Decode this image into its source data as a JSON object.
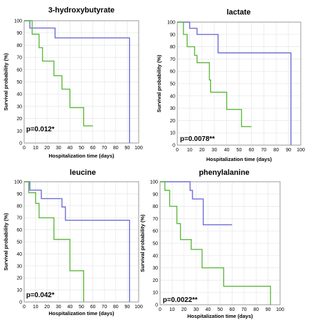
{
  "colors": {
    "blue_series": "#6b6bd6",
    "green_series": "#5cb83c",
    "frame": "#9a9a9a",
    "grid": "#e6e6e6"
  },
  "chart_data": [
    {
      "type": "line",
      "step": true,
      "title": "3-hydroxybutyrate",
      "xlabel": "Hospitalization time  (days)",
      "ylabel": "Survival probability  (%)",
      "xlim": [
        0,
        100
      ],
      "ylim": [
        0,
        100
      ],
      "xticks": [
        0,
        10,
        20,
        30,
        40,
        50,
        60,
        70,
        80,
        90,
        100
      ],
      "yticks": [
        0,
        10,
        20,
        30,
        40,
        50,
        60,
        70,
        80,
        90,
        100
      ],
      "grid": true,
      "annotation": "p=0.012*",
      "series": [
        {
          "color": "blue",
          "points": [
            [
              0,
              100
            ],
            [
              5,
              100
            ],
            [
              5,
              94
            ],
            [
              27,
              94
            ],
            [
              27,
              86
            ],
            [
              92,
              86
            ],
            [
              92,
              0
            ]
          ]
        },
        {
          "color": "green",
          "points": [
            [
              0,
              100
            ],
            [
              7,
              100
            ],
            [
              7,
              89
            ],
            [
              13,
              89
            ],
            [
              13,
              78
            ],
            [
              16,
              78
            ],
            [
              16,
              67
            ],
            [
              26,
              67
            ],
            [
              26,
              55
            ],
            [
              33,
              55
            ],
            [
              33,
              44
            ],
            [
              40,
              44
            ],
            [
              40,
              29
            ],
            [
              52,
              29
            ],
            [
              52,
              14
            ],
            [
              60,
              14
            ]
          ]
        }
      ]
    },
    {
      "type": "line",
      "step": true,
      "title": "lactate",
      "xlabel": "Hospitalization time  (days)",
      "ylabel": "Survival probability  (%)",
      "xlim": [
        0,
        100
      ],
      "ylim": [
        0,
        100
      ],
      "xticks": [
        0,
        10,
        20,
        30,
        40,
        50,
        60,
        70,
        80,
        90,
        100
      ],
      "yticks": [
        0,
        10,
        20,
        30,
        40,
        50,
        60,
        70,
        80,
        90,
        100
      ],
      "grid": true,
      "annotation": "p=0.0078**",
      "series": [
        {
          "color": "blue",
          "points": [
            [
              0,
              100
            ],
            [
              10,
              100
            ],
            [
              10,
              95
            ],
            [
              16,
              95
            ],
            [
              16,
              90
            ],
            [
              33,
              90
            ],
            [
              33,
              75
            ],
            [
              92,
              75
            ],
            [
              92,
              0
            ]
          ]
        },
        {
          "color": "green",
          "points": [
            [
              0,
              100
            ],
            [
              5,
              100
            ],
            [
              5,
              90
            ],
            [
              8,
              90
            ],
            [
              8,
              80
            ],
            [
              14,
              80
            ],
            [
              14,
              73
            ],
            [
              16,
              73
            ],
            [
              16,
              67
            ],
            [
              26,
              67
            ],
            [
              26,
              53
            ],
            [
              27,
              53
            ],
            [
              27,
              43
            ],
            [
              40,
              43
            ],
            [
              40,
              29
            ],
            [
              52,
              29
            ],
            [
              52,
              15
            ],
            [
              60,
              15
            ]
          ]
        }
      ]
    },
    {
      "type": "line",
      "step": true,
      "title": "leucine",
      "xlabel": "Hospitalization time  (days)",
      "ylabel": "Survival probability  (%)",
      "xlim": [
        0,
        100
      ],
      "ylim": [
        0,
        100
      ],
      "xticks": [
        0,
        10,
        20,
        30,
        40,
        50,
        60,
        70,
        80,
        90,
        100
      ],
      "yticks": [
        0,
        10,
        20,
        30,
        40,
        50,
        60,
        70,
        80,
        90,
        100
      ],
      "grid": true,
      "annotation": "p=0.042*",
      "series": [
        {
          "color": "blue",
          "points": [
            [
              0,
              100
            ],
            [
              5,
              100
            ],
            [
              5,
              93
            ],
            [
              15,
              93
            ],
            [
              15,
              86
            ],
            [
              33,
              86
            ],
            [
              33,
              79
            ],
            [
              36,
              79
            ],
            [
              36,
              68
            ],
            [
              92,
              68
            ],
            [
              92,
              0
            ]
          ]
        },
        {
          "color": "green",
          "points": [
            [
              0,
              100
            ],
            [
              4,
              100
            ],
            [
              4,
              91
            ],
            [
              10,
              91
            ],
            [
              10,
              82
            ],
            [
              13,
              82
            ],
            [
              13,
              70
            ],
            [
              26,
              70
            ],
            [
              26,
              52
            ],
            [
              40,
              52
            ],
            [
              40,
              26
            ],
            [
              52,
              26
            ],
            [
              52,
              0
            ]
          ]
        }
      ]
    },
    {
      "type": "line",
      "step": true,
      "title": "phenylalanine",
      "xlabel": "Hospitalization time  (days)",
      "ylabel": "Survival probability  (%)",
      "xlim": [
        0,
        100
      ],
      "ylim": [
        0,
        100
      ],
      "xticks": [
        0,
        10,
        20,
        30,
        40,
        50,
        60,
        70,
        80,
        90,
        100
      ],
      "yticks": [
        0,
        10,
        20,
        30,
        40,
        50,
        60,
        70,
        80,
        90,
        100
      ],
      "grid": true,
      "annotation": "p=0.0022**",
      "series": [
        {
          "color": "blue",
          "points": [
            [
              0,
              100
            ],
            [
              25,
              100
            ],
            [
              25,
              93
            ],
            [
              27,
              93
            ],
            [
              27,
              86
            ],
            [
              36,
              86
            ],
            [
              36,
              65
            ],
            [
              60,
              65
            ]
          ]
        },
        {
          "color": "green",
          "points": [
            [
              0,
              100
            ],
            [
              4,
              100
            ],
            [
              4,
              93
            ],
            [
              8,
              93
            ],
            [
              8,
              80
            ],
            [
              14,
              80
            ],
            [
              14,
              66
            ],
            [
              17,
              66
            ],
            [
              17,
              53
            ],
            [
              26,
              53
            ],
            [
              26,
              45
            ],
            [
              35,
              45
            ],
            [
              35,
              30
            ],
            [
              53,
              30
            ],
            [
              53,
              15
            ],
            [
              92,
              15
            ],
            [
              92,
              0
            ]
          ]
        }
      ]
    }
  ]
}
